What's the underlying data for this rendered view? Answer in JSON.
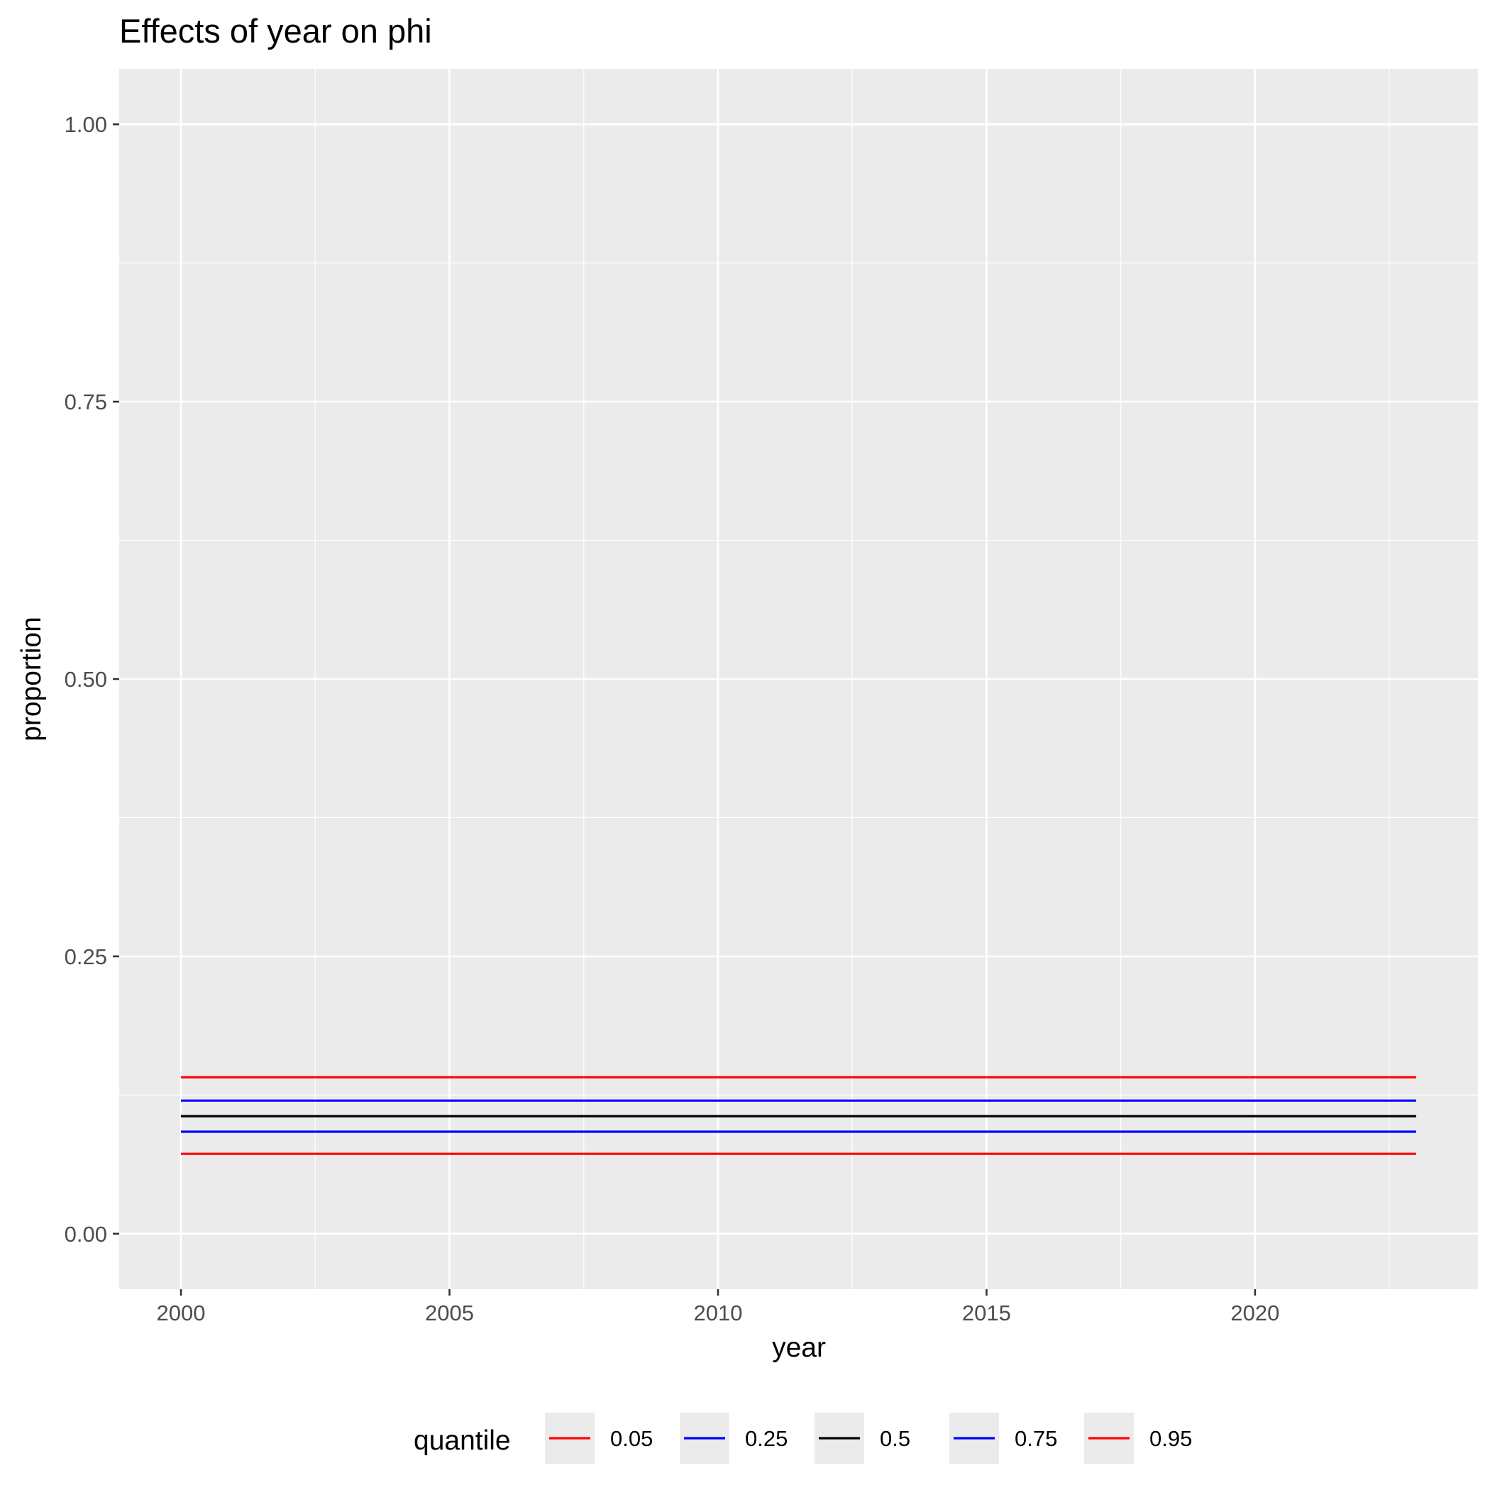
{
  "chart_data": {
    "type": "line",
    "title": "Effects of year on phi",
    "xlabel": "year",
    "ylabel": "proportion",
    "xlim": [
      1998.85,
      2024.15
    ],
    "ylim": [
      -0.05,
      1.05
    ],
    "x_ticks": [
      2000,
      2005,
      2010,
      2015,
      2020
    ],
    "x_tick_labels": [
      "2000",
      "2005",
      "2010",
      "2015",
      "2020"
    ],
    "y_ticks": [
      0,
      0.25,
      0.5,
      0.75,
      1
    ],
    "y_tick_labels": [
      "0.00",
      "0.25",
      "0.50",
      "0.75",
      "1.00"
    ],
    "grid": true,
    "legend_position": "bottom",
    "legend_title": "quantile",
    "x": [
      2000,
      2023
    ],
    "series": [
      {
        "name": "0.05",
        "color": "#ff0000",
        "values": [
          0.072,
          0.072
        ]
      },
      {
        "name": "0.25",
        "color": "#0000ff",
        "values": [
          0.092,
          0.092
        ]
      },
      {
        "name": "0.5",
        "color": "#000000",
        "values": [
          0.106,
          0.106
        ]
      },
      {
        "name": "0.75",
        "color": "#0000ff",
        "values": [
          0.12,
          0.12
        ]
      },
      {
        "name": "0.95",
        "color": "#ff0000",
        "values": [
          0.141,
          0.141
        ]
      }
    ]
  }
}
